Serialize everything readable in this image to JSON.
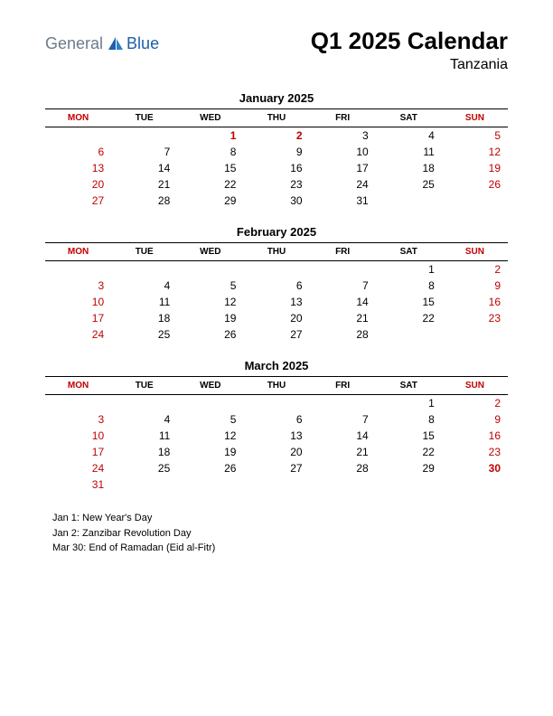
{
  "logo": {
    "general": "General",
    "blue": "Blue"
  },
  "title": "Q1 2025 Calendar",
  "subtitle": "Tanzania",
  "colors": {
    "red": "#c00000",
    "black": "#000000",
    "logo_gray": "#6b7b8c",
    "logo_blue": "#1e5fa8"
  },
  "day_headers": [
    "MON",
    "TUE",
    "WED",
    "THU",
    "FRI",
    "SAT",
    "SUN"
  ],
  "header_red_indices": [
    0,
    6
  ],
  "months": [
    {
      "title": "January 2025",
      "weeks": [
        [
          "",
          "",
          {
            "v": "1",
            "red": true,
            "bold": true
          },
          {
            "v": "2",
            "red": true,
            "bold": true
          },
          "3",
          "4",
          {
            "v": "5",
            "red": true
          }
        ],
        [
          {
            "v": "6",
            "red": true
          },
          "7",
          "8",
          "9",
          "10",
          "11",
          {
            "v": "12",
            "red": true
          }
        ],
        [
          {
            "v": "13",
            "red": true
          },
          "14",
          "15",
          "16",
          "17",
          "18",
          {
            "v": "19",
            "red": true
          }
        ],
        [
          {
            "v": "20",
            "red": true
          },
          "21",
          "22",
          "23",
          "24",
          "25",
          {
            "v": "26",
            "red": true
          }
        ],
        [
          {
            "v": "27",
            "red": true
          },
          "28",
          "29",
          "30",
          "31",
          "",
          ""
        ]
      ]
    },
    {
      "title": "February 2025",
      "weeks": [
        [
          "",
          "",
          "",
          "",
          "",
          "1",
          {
            "v": "2",
            "red": true
          }
        ],
        [
          {
            "v": "3",
            "red": true
          },
          "4",
          "5",
          "6",
          "7",
          "8",
          {
            "v": "9",
            "red": true
          }
        ],
        [
          {
            "v": "10",
            "red": true
          },
          "11",
          "12",
          "13",
          "14",
          "15",
          {
            "v": "16",
            "red": true
          }
        ],
        [
          {
            "v": "17",
            "red": true
          },
          "18",
          "19",
          "20",
          "21",
          "22",
          {
            "v": "23",
            "red": true
          }
        ],
        [
          {
            "v": "24",
            "red": true
          },
          "25",
          "26",
          "27",
          "28",
          "",
          ""
        ]
      ]
    },
    {
      "title": "March 2025",
      "weeks": [
        [
          "",
          "",
          "",
          "",
          "",
          "1",
          {
            "v": "2",
            "red": true
          }
        ],
        [
          {
            "v": "3",
            "red": true
          },
          "4",
          "5",
          "6",
          "7",
          "8",
          {
            "v": "9",
            "red": true
          }
        ],
        [
          {
            "v": "10",
            "red": true
          },
          "11",
          "12",
          "13",
          "14",
          "15",
          {
            "v": "16",
            "red": true
          }
        ],
        [
          {
            "v": "17",
            "red": true
          },
          "18",
          "19",
          "20",
          "21",
          "22",
          {
            "v": "23",
            "red": true
          }
        ],
        [
          {
            "v": "24",
            "red": true
          },
          "25",
          "26",
          "27",
          "28",
          "29",
          {
            "v": "30",
            "red": true,
            "bold": true
          }
        ],
        [
          {
            "v": "31",
            "red": true
          },
          "",
          "",
          "",
          "",
          "",
          ""
        ]
      ]
    }
  ],
  "holidays": [
    "Jan 1: New Year's Day",
    "Jan 2: Zanzibar Revolution Day",
    "Mar 30: End of Ramadan (Eid al-Fitr)"
  ]
}
